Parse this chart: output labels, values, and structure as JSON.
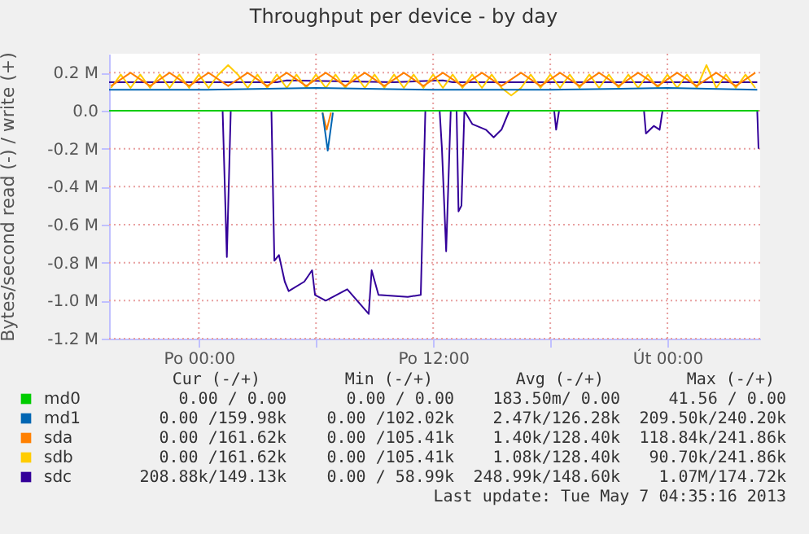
{
  "chart_data": {
    "type": "line",
    "title": "Throughput per device - by day",
    "ylabel": "Bytes/second read (-) / write (+)",
    "xlim": [
      "2013-05-05T19:24",
      "2013-05-07T04:45"
    ],
    "xticks": [
      {
        "value": "2013-05-06T00:00",
        "label": "Po 00:00"
      },
      {
        "value": "2013-05-06T06:00",
        "label": null
      },
      {
        "value": "2013-05-06T12:00",
        "label": "Po 12:00"
      },
      {
        "value": "2013-05-06T18:00",
        "label": null
      },
      {
        "value": "2013-05-07T00:00",
        "label": "Út 00:00"
      }
    ],
    "ylim": [
      -1200000,
      300000
    ],
    "yticks": [
      {
        "value": -1200000,
        "label": "-1.2 M"
      },
      {
        "value": -1000000,
        "label": "-1.0 M"
      },
      {
        "value": -800000,
        "label": "-0.8 M"
      },
      {
        "value": -600000,
        "label": "-0.6 M"
      },
      {
        "value": -400000,
        "label": "-0.4 M"
      },
      {
        "value": -200000,
        "label": "-0.2 M"
      },
      {
        "value": 0,
        "label": "0.0"
      },
      {
        "value": 200000,
        "label": "0.2 M"
      }
    ],
    "grid": true,
    "legend": "bottom left",
    "line_style": "solid",
    "marker": "none",
    "series": [
      {
        "name": "md0",
        "color": "#00cc00",
        "x": [
          "2013-05-05T19:24",
          "2013-05-07T04:40"
        ],
        "values": [
          0,
          0
        ]
      },
      {
        "name": "md1",
        "color": "#0066b3",
        "x": [
          "2013-05-05T19:24",
          "2013-05-06T00:00",
          "2013-05-06T06:00",
          "2013-05-06T12:00",
          "2013-05-06T18:00",
          "2013-05-07T00:00",
          "2013-05-07T04:36"
        ],
        "values": [
          110000,
          110000,
          120000,
          110000,
          110000,
          120000,
          110000
        ]
      },
      {
        "color": "#0066b3",
        "x": [
          "2013-05-06T06:20",
          "2013-05-06T06:36",
          "2013-05-06T06:52"
        ],
        "values": [
          -10000,
          -210000,
          -10000
        ]
      },
      {
        "name": "sda",
        "color": "#ff8000",
        "x": [
          "2013-05-05T19:30",
          "2013-05-05T20:30",
          "2013-05-05T21:30",
          "2013-05-05T22:30",
          "2013-05-05T23:30",
          "2013-05-06T00:30",
          "2013-05-06T01:30",
          "2013-05-06T02:30",
          "2013-05-06T03:30",
          "2013-05-06T04:30",
          "2013-05-06T05:30",
          "2013-05-06T06:30",
          "2013-05-06T07:30",
          "2013-05-06T08:30",
          "2013-05-06T09:30",
          "2013-05-06T10:30",
          "2013-05-06T11:30",
          "2013-05-06T12:30",
          "2013-05-06T13:30",
          "2013-05-06T14:30",
          "2013-05-06T15:30",
          "2013-05-06T16:30",
          "2013-05-06T17:30",
          "2013-05-06T18:30",
          "2013-05-06T19:30",
          "2013-05-06T20:30",
          "2013-05-06T21:30",
          "2013-05-06T22:30",
          "2013-05-06T23:30",
          "2013-05-07T00:30",
          "2013-05-07T01:30",
          "2013-05-07T02:30",
          "2013-05-07T03:30",
          "2013-05-07T04:30"
        ],
        "values": [
          130000,
          200000,
          130000,
          200000,
          130000,
          200000,
          130000,
          200000,
          130000,
          200000,
          130000,
          200000,
          130000,
          200000,
          130000,
          200000,
          130000,
          200000,
          130000,
          200000,
          130000,
          200000,
          130000,
          200000,
          130000,
          200000,
          130000,
          200000,
          130000,
          200000,
          130000,
          200000,
          130000,
          200000
        ]
      },
      {
        "color": "#ff8000",
        "x": [
          "2013-05-06T06:20",
          "2013-05-06T06:33",
          "2013-05-06T06:46"
        ],
        "values": [
          -10000,
          -100000,
          -10000
        ]
      },
      {
        "name": "sdb",
        "color": "#ffcc00",
        "x": [
          "2013-05-05T19:30",
          "2013-05-05T20:00",
          "2013-05-05T20:30",
          "2013-05-05T21:00",
          "2013-05-05T21:30",
          "2013-05-05T22:00",
          "2013-05-05T22:30",
          "2013-05-05T23:00",
          "2013-05-05T23:30",
          "2013-05-06T00:00",
          "2013-05-06T00:30",
          "2013-05-06T01:00",
          "2013-05-06T01:30",
          "2013-05-06T02:00",
          "2013-05-06T02:30",
          "2013-05-06T03:00",
          "2013-05-06T03:30",
          "2013-05-06T04:00",
          "2013-05-06T04:30",
          "2013-05-06T05:00",
          "2013-05-06T05:30",
          "2013-05-06T06:00",
          "2013-05-06T06:30",
          "2013-05-06T07:00",
          "2013-05-06T07:30",
          "2013-05-06T08:00",
          "2013-05-06T08:30",
          "2013-05-06T09:00",
          "2013-05-06T09:30",
          "2013-05-06T10:00",
          "2013-05-06T10:30",
          "2013-05-06T11:00",
          "2013-05-06T11:30",
          "2013-05-06T12:00",
          "2013-05-06T12:30",
          "2013-05-06T13:00",
          "2013-05-06T13:30",
          "2013-05-06T14:00",
          "2013-05-06T14:30",
          "2013-05-06T15:00",
          "2013-05-06T15:30",
          "2013-05-06T16:00",
          "2013-05-06T16:30",
          "2013-05-06T17:00",
          "2013-05-06T17:30",
          "2013-05-06T18:00",
          "2013-05-06T18:30",
          "2013-05-06T19:00",
          "2013-05-06T19:30",
          "2013-05-06T20:00",
          "2013-05-06T20:30",
          "2013-05-06T21:00",
          "2013-05-06T21:30",
          "2013-05-06T22:00",
          "2013-05-06T22:30",
          "2013-05-06T23:00",
          "2013-05-06T23:30",
          "2013-05-07T00:00",
          "2013-05-07T00:30",
          "2013-05-07T01:00",
          "2013-05-07T01:30",
          "2013-05-07T02:00",
          "2013-05-07T02:30",
          "2013-05-07T03:00",
          "2013-05-07T03:30",
          "2013-05-07T04:00",
          "2013-05-07T04:30"
        ],
        "values": [
          120000,
          190000,
          120000,
          190000,
          120000,
          190000,
          120000,
          190000,
          120000,
          190000,
          120000,
          190000,
          240000,
          190000,
          120000,
          190000,
          120000,
          190000,
          120000,
          190000,
          120000,
          190000,
          120000,
          190000,
          120000,
          190000,
          120000,
          190000,
          120000,
          190000,
          120000,
          190000,
          120000,
          190000,
          120000,
          190000,
          120000,
          190000,
          120000,
          190000,
          120000,
          80000,
          120000,
          190000,
          120000,
          190000,
          120000,
          190000,
          120000,
          190000,
          120000,
          190000,
          120000,
          190000,
          120000,
          190000,
          120000,
          190000,
          120000,
          190000,
          120000,
          240000,
          120000,
          190000,
          120000,
          190000,
          120000
        ]
      },
      {
        "name": "sdc",
        "color": "#330099",
        "x": [
          "2013-05-05T19:24",
          "2013-05-06T04:00",
          "2013-05-06T04:30",
          "2013-05-06T10:00",
          "2013-05-06T12:30",
          "2013-05-06T13:00",
          "2013-05-06T20:00",
          "2013-05-07T04:36"
        ],
        "values": [
          150000,
          150000,
          160000,
          150000,
          160000,
          150000,
          150000,
          150000
        ]
      },
      {
        "color": "#330099",
        "x": [
          "2013-05-05T19:24",
          "2013-05-06T01:13",
          "2013-05-06T01:26",
          "2013-05-06T01:38",
          "2013-05-06T03:43",
          "2013-05-06T03:52",
          "2013-05-06T04:06",
          "2013-05-06T04:24",
          "2013-05-06T04:36",
          "2013-05-06T05:24",
          "2013-05-06T05:48",
          "2013-05-06T05:57",
          "2013-05-06T06:30",
          "2013-05-06T07:36",
          "2013-05-06T08:42",
          "2013-05-06T08:51",
          "2013-05-06T09:12",
          "2013-05-06T10:42",
          "2013-05-06T11:22",
          "2013-05-06T11:36",
          "2013-05-06T12:20",
          "2013-05-06T12:27",
          "2013-05-06T12:40",
          "2013-05-06T12:54",
          "2013-05-06T13:12",
          "2013-05-06T13:18",
          "2013-05-06T13:27",
          "2013-05-06T13:36",
          "2013-05-06T14:00",
          "2013-05-06T14:42",
          "2013-05-06T15:06",
          "2013-05-06T15:30",
          "2013-05-06T15:54",
          "2013-05-06T18:12",
          "2013-05-06T18:18",
          "2013-05-06T18:27",
          "2013-05-06T22:48",
          "2013-05-06T22:54",
          "2013-05-06T23:18",
          "2013-05-06T23:36",
          "2013-05-06T23:45",
          "2013-05-07T04:36",
          "2013-05-07T04:40"
        ],
        "values": [
          0,
          0,
          -770000,
          0,
          0,
          -790000,
          -760000,
          -900000,
          -950000,
          -900000,
          -840000,
          -970000,
          -1000000,
          -940000,
          -1070000,
          -840000,
          -970000,
          -980000,
          -970000,
          0,
          0,
          -200000,
          -740000,
          0,
          0,
          -530000,
          -500000,
          0,
          -70000,
          -100000,
          -140000,
          -100000,
          0,
          0,
          -100000,
          0,
          0,
          -120000,
          -80000,
          -100000,
          0,
          0,
          -200000
        ]
      }
    ],
    "annotations": [
      "Cur (-/+)",
      "Min (-/+)",
      "Avg (-/+)",
      "Max (-/+)",
      "0.00 /  0.00",
      "0.00 /  0.00",
      "183.50m/  0.00",
      "41.56 /  0.00",
      "0.00 /159.98k",
      "0.00 /102.02k",
      "2.47k/126.28k",
      "209.50k/240.20k",
      "0.00 /161.62k",
      "0.00 /105.41k",
      "1.40k/128.40k",
      "118.84k/241.86k",
      "0.00 /161.62k",
      "0.00 /105.41k",
      "1.08k/128.40k",
      "90.70k/241.86k",
      "208.88k/149.13k",
      "0.00 / 58.99k",
      "248.99k/148.60k",
      "1.07M/174.72k",
      "Last update: Tue May  7 04:35:16 2013"
    ]
  }
}
